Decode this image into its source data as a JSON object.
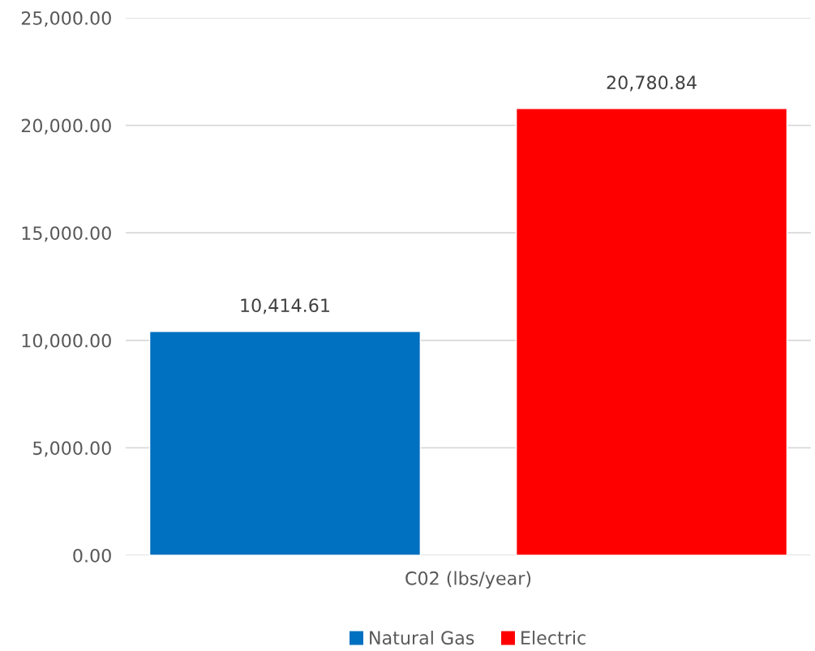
{
  "chart_data": {
    "type": "bar",
    "categories": [
      "C02 (lbs/year)"
    ],
    "series": [
      {
        "name": "Natural Gas",
        "color": "#0070c0",
        "values": [
          10414.61
        ],
        "value_labels": [
          "10,414.61"
        ]
      },
      {
        "name": "Electric",
        "color": "#ff0000",
        "values": [
          20780.84
        ],
        "value_labels": [
          "20,780.84"
        ]
      }
    ],
    "ylim": [
      0,
      25000
    ],
    "yticks": [
      {
        "value": 0,
        "label": "0.00"
      },
      {
        "value": 5000,
        "label": "5,000.00"
      },
      {
        "value": 10000,
        "label": "10,000.00"
      },
      {
        "value": 15000,
        "label": "15,000.00"
      },
      {
        "value": 20000,
        "label": "20,000.00"
      },
      {
        "value": 25000,
        "label": "25,000.00"
      }
    ],
    "grid": "y",
    "legend": "bottom"
  }
}
